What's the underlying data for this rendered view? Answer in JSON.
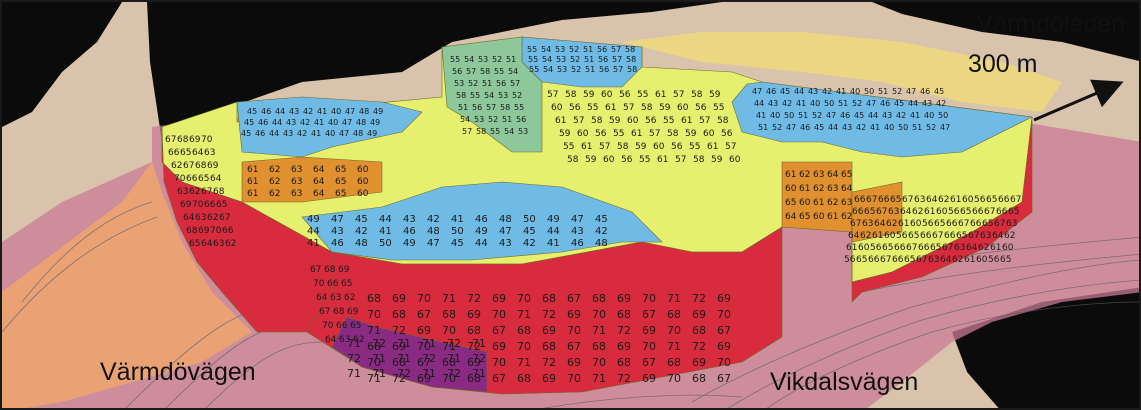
{
  "labels": {
    "road_east": "Värmdöleden",
    "road_east_distance": "300 m",
    "road_west": "Värmdövägen",
    "road_south": "Vikdalsvägen"
  },
  "colors": {
    "band_45_50": "#6fbbe6",
    "band_50_55": "#8dc79a",
    "band_55_60": "#e8ea58",
    "band_60_65": "#e0902f",
    "band_65_70": "#d92b3e",
    "band_70_plus": "#8b2a83",
    "roof": "#e7ef6e",
    "terrain": "#d9c3ad",
    "terrain_dark": "#0b0b0b",
    "noise_pink": "#c97b94",
    "noise_orange": "#f1a86a",
    "noise_yellow": "#f2de70"
  },
  "icons": [
    "arrow-icon"
  ],
  "facade_levels": {
    "west_wall": [
      67,
      68,
      69,
      70,
      66,
      65,
      64,
      63,
      62
    ],
    "south_wall": [
      68,
      69,
      70,
      71,
      72,
      69,
      70,
      68,
      67
    ],
    "south_wall_purple": [
      71,
      72,
      71,
      71,
      72
    ],
    "east_wall": [
      66,
      67,
      66,
      65,
      67,
      63,
      64,
      62,
      61,
      60,
      56,
      65
    ],
    "courtyard_front": [
      49,
      47,
      45,
      44,
      43,
      42,
      41,
      46,
      48,
      50
    ],
    "courtyard_nw": [
      45,
      46,
      44,
      43,
      42,
      41,
      40,
      47,
      48,
      49
    ],
    "courtyard_ne": [
      47,
      46,
      45,
      44,
      43,
      42,
      41,
      40,
      50,
      51,
      52
    ],
    "courtyard_n_green": [
      55,
      54,
      53,
      52,
      51,
      56,
      57,
      58
    ],
    "inner_yellow": [
      57,
      58,
      59,
      60,
      56,
      55,
      61
    ],
    "inner_orange": [
      61,
      62,
      63,
      64,
      65,
      60
    ]
  }
}
